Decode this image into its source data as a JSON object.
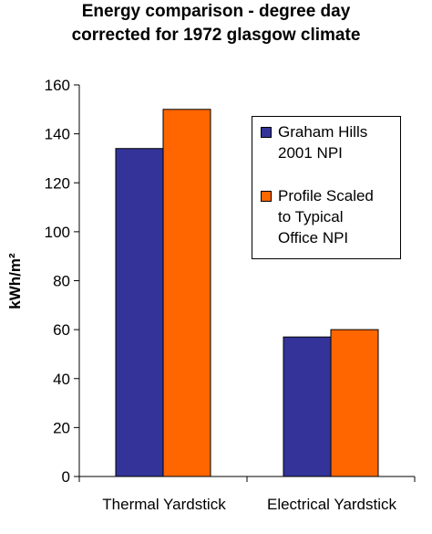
{
  "chart_data": {
    "type": "bar",
    "title_lines": [
      "Energy comparison - degree day",
      "corrected for 1972 glasgow climate"
    ],
    "ylabel": "kWh/m²",
    "xlabel": "",
    "ylim": [
      0,
      160
    ],
    "yticks": [
      "0",
      "20",
      "40",
      "60",
      "80",
      "100",
      "120",
      "140",
      "160"
    ],
    "categories": [
      "Thermal Yardstick",
      "Electrical Yardstick"
    ],
    "series": [
      {
        "name": "Graham Hills 2001 NPI",
        "legend_text": "Graham Hills\n2001 NPI",
        "color": "#333399",
        "values": [
          134,
          57
        ]
      },
      {
        "name": "Profile Scaled to Typical Office NPI",
        "legend_text": "Profile Scaled\nto Typical\nOffice NPI",
        "color": "#ff6600",
        "values": [
          150,
          60
        ]
      }
    ],
    "grid": false,
    "legend_position": "right"
  }
}
